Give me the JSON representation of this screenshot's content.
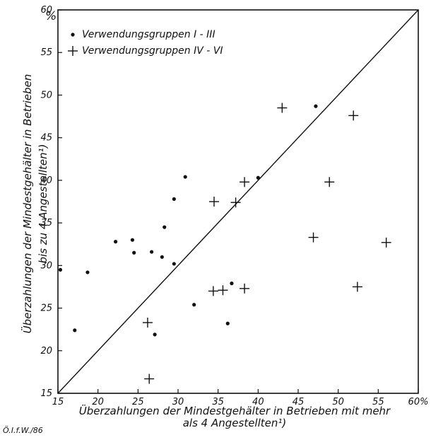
{
  "chart_data": {
    "type": "scatter",
    "xlabel": [
      "Überzahlungen der Mindestgehälter in Betrieben mit mehr",
      "als 4 Angestellten¹)"
    ],
    "ylabel": [
      "Überzahlungen der Mindestgehälter in Betrieben",
      "bis zu 4 Angestellten¹)"
    ],
    "y_unit": "%",
    "xlim": [
      15,
      60
    ],
    "ylim": [
      15,
      60
    ],
    "x_ticks": [
      "15",
      "20",
      "25",
      "30",
      "35",
      "40",
      "45",
      "50",
      "55",
      "60%"
    ],
    "y_ticks": [
      "15",
      "20",
      "25",
      "30",
      "35",
      "40",
      "45",
      "50",
      "55",
      "60"
    ],
    "grid": false,
    "legend_position": "top-left",
    "reference_line": {
      "from": [
        15,
        15
      ],
      "to": [
        60,
        60
      ]
    },
    "series": [
      {
        "name": "Verwendungsgruppen I - III",
        "marker": "dot",
        "points": [
          [
            15.3,
            29.5
          ],
          [
            17.1,
            22.4
          ],
          [
            18.7,
            29.2
          ],
          [
            22.2,
            32.8
          ],
          [
            24.3,
            33.0
          ],
          [
            24.5,
            31.5
          ],
          [
            26.7,
            31.6
          ],
          [
            27.1,
            21.9
          ],
          [
            28.0,
            31.0
          ],
          [
            28.3,
            34.5
          ],
          [
            29.5,
            30.2
          ],
          [
            29.5,
            37.8
          ],
          [
            30.9,
            40.4
          ],
          [
            32.0,
            25.4
          ],
          [
            36.2,
            23.2
          ],
          [
            36.7,
            27.9
          ],
          [
            40.0,
            40.3
          ],
          [
            47.2,
            48.7
          ]
        ]
      },
      {
        "name": "Verwendungsgruppen IV - VI",
        "marker": "plus",
        "points": [
          [
            26.2,
            23.3
          ],
          [
            26.4,
            16.7
          ],
          [
            34.4,
            27.0
          ],
          [
            34.5,
            37.5
          ],
          [
            35.6,
            27.1
          ],
          [
            37.2,
            37.4
          ],
          [
            38.3,
            27.3
          ],
          [
            38.3,
            39.8
          ],
          [
            43.0,
            48.5
          ],
          [
            46.9,
            33.3
          ],
          [
            48.9,
            39.8
          ],
          [
            51.9,
            47.6
          ],
          [
            52.4,
            27.5
          ],
          [
            56.0,
            32.7
          ]
        ]
      }
    ]
  },
  "source_note": "Ö.I.f.W./86",
  "colors": {
    "ink": "#111111",
    "background": "#ffffff"
  }
}
